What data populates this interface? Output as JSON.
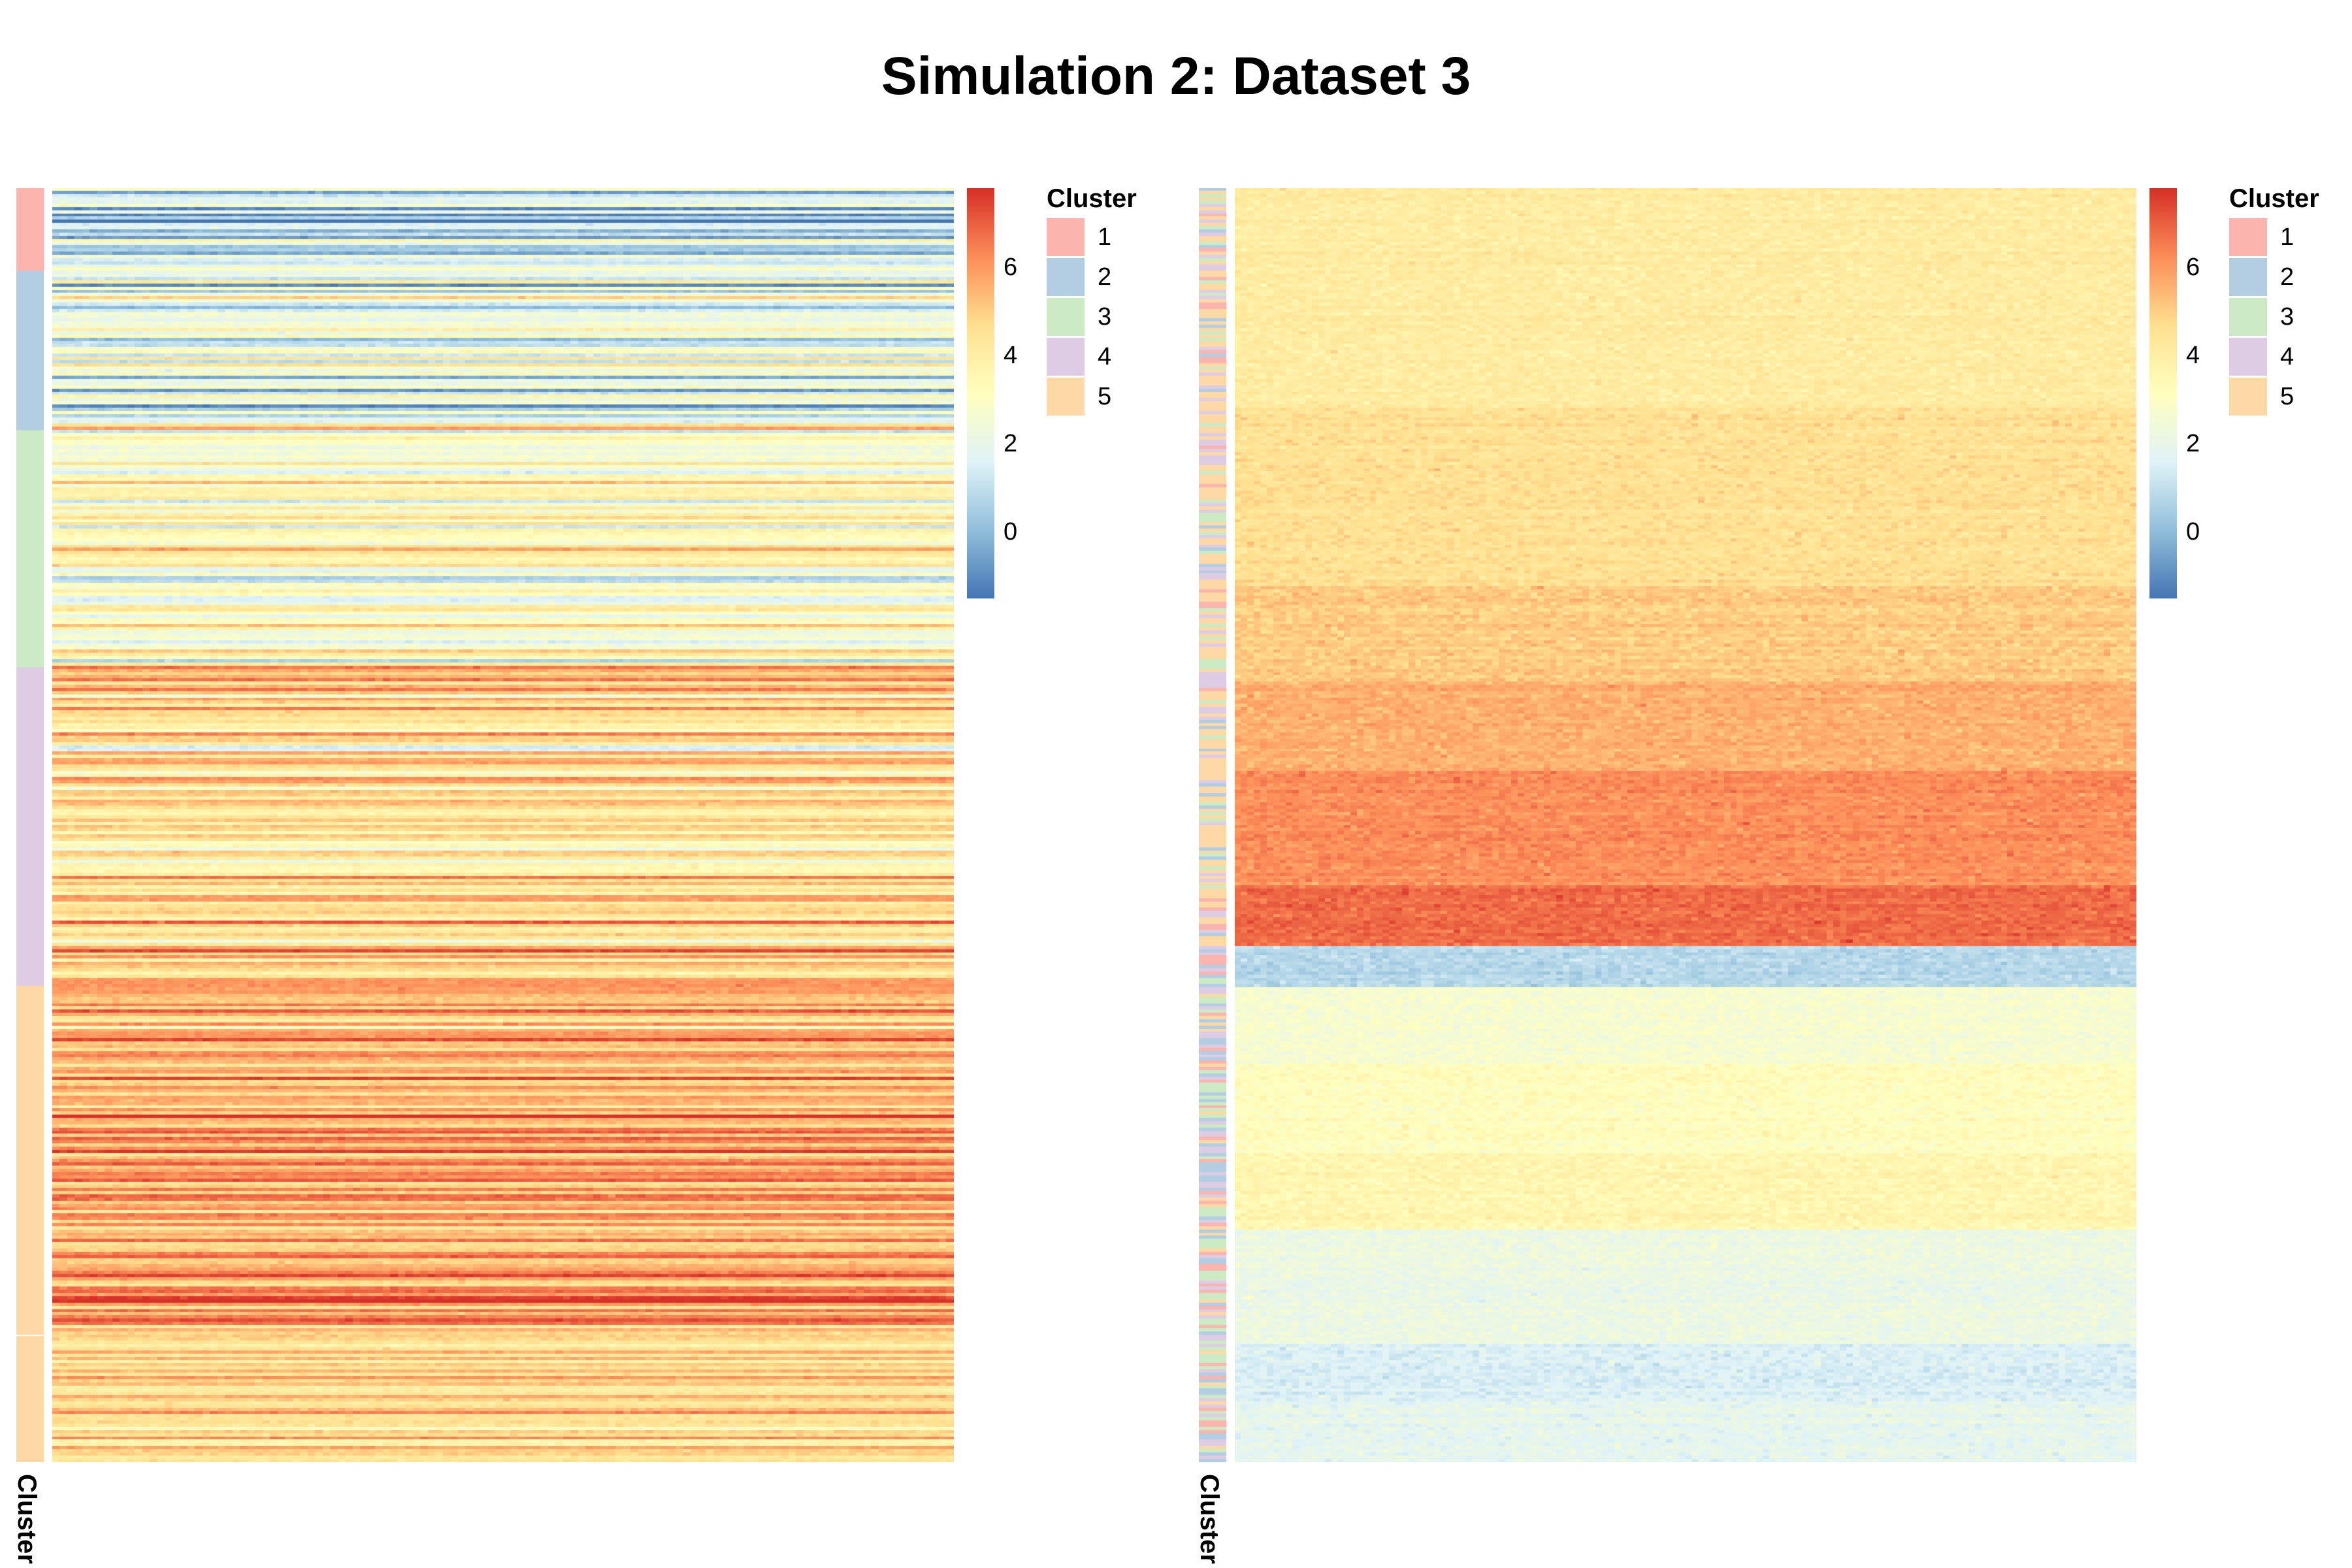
{
  "title": "Simulation 2: Dataset 3",
  "chart_data": [
    {
      "type": "heatmap",
      "panel": "left",
      "row_annotation_label": "Cluster",
      "color_scale": {
        "ticks": [
          0,
          2,
          4,
          6
        ],
        "range": [
          -1.5,
          7.8
        ],
        "colors": [
          "#4575b4",
          "#91bfdb",
          "#e0f3f8",
          "#ffffbf",
          "#fee090",
          "#fc8d59",
          "#d73027"
        ]
      },
      "legend": {
        "title": "Cluster",
        "entries": [
          {
            "label": "1",
            "color": "#fbb4ae"
          },
          {
            "label": "2",
            "color": "#b3cde3"
          },
          {
            "label": "3",
            "color": "#ccebc5"
          },
          {
            "label": "4",
            "color": "#decbe4"
          },
          {
            "label": "5",
            "color": "#fed9a6"
          }
        ]
      },
      "row_clusters": [
        {
          "cluster": "1",
          "fraction": 0.065
        },
        {
          "cluster": "2",
          "fraction": 0.125
        },
        {
          "cluster": "3",
          "fraction": 0.186
        },
        {
          "cluster": "4",
          "fraction": 0.25
        },
        {
          "cluster": "5",
          "fraction": 0.274
        },
        {
          "cluster": "5",
          "fraction": 0.1
        }
      ],
      "cluster_mean_values": [
        {
          "cluster": "1",
          "mean": 1.6,
          "spread": 1.6
        },
        {
          "cluster": "2",
          "mean": 1.9,
          "spread": 1.7
        },
        {
          "cluster": "3",
          "mean": 3.0,
          "spread": 1.2
        },
        {
          "cluster": "4",
          "mean": 4.6,
          "spread": 1.1
        },
        {
          "cluster": "5",
          "mean": 5.6,
          "spread": 1.0
        },
        {
          "cluster": "5",
          "mean": 5.0,
          "spread": 0.9
        }
      ],
      "n_rows": 400,
      "n_columns": 120
    },
    {
      "type": "heatmap",
      "panel": "right",
      "row_annotation_label": "Cluster",
      "color_scale": {
        "ticks": [
          0,
          2,
          4,
          6
        ],
        "range": [
          -1.5,
          7.8
        ],
        "colors": [
          "#4575b4",
          "#91bfdb",
          "#e0f3f8",
          "#ffffbf",
          "#fee090",
          "#fc8d59",
          "#d73027"
        ]
      },
      "legend": {
        "title": "Cluster",
        "entries": [
          {
            "label": "1",
            "color": "#fbb4ae"
          },
          {
            "label": "2",
            "color": "#b3cde3"
          },
          {
            "label": "3",
            "color": "#ccebc5"
          },
          {
            "label": "4",
            "color": "#decbe4"
          },
          {
            "label": "5",
            "color": "#fed9a6"
          }
        ]
      },
      "row_blocks": [
        {
          "fraction": 0.163,
          "value": 4.1
        },
        {
          "fraction": 0.133,
          "value": 4.6
        },
        {
          "fraction": 0.069,
          "value": 5.1
        },
        {
          "fraction": 0.068,
          "value": 5.6
        },
        {
          "fraction": 0.084,
          "value": 6.2
        },
        {
          "fraction": 0.044,
          "value": 6.8
        },
        {
          "fraction": 0.032,
          "value": 0.8
        },
        {
          "fraction": 0.055,
          "value": 2.7
        },
        {
          "fraction": 0.066,
          "value": 3.2
        },
        {
          "fraction": 0.058,
          "value": 3.6
        },
        {
          "fraction": 0.084,
          "value": 2.2
        },
        {
          "fraction": 0.044,
          "value": 1.5
        },
        {
          "fraction": 0.044,
          "value": 1.9
        }
      ],
      "n_rows": 400,
      "n_columns": 140
    }
  ]
}
